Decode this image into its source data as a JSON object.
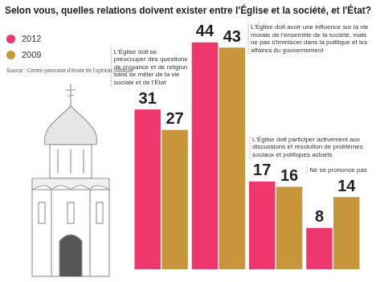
{
  "chart_data": {
    "type": "bar",
    "title": "Selon vous, quelles relations doivent exister entre l'Église et la société, et l'État?",
    "source": "Source : Centre panrusse d'étude de l'opinion publique",
    "categories": [
      "L'Église doit se préoccuper des questions de croyance et de religion sans se mêler de la vie sociale et de l'État",
      "L'Église doit avoir une influence sur la vie morale de l'ensemble de la société, mais ne pas s'immiscer dans la politique et les affaires du gouvernement",
      "L'Église doit participer activement aux discussions et résolution de problèmes sociaux et politiques actuels",
      "Ne se prononce pas"
    ],
    "series": [
      {
        "name": "2012",
        "color": "#f0376d",
        "values": [
          31,
          44,
          17,
          8
        ]
      },
      {
        "name": "2009",
        "color": "#c8953a",
        "values": [
          27,
          43,
          16,
          14
        ]
      }
    ],
    "ylim": [
      0,
      46
    ],
    "grid": false,
    "legend": "top-left",
    "data_labels": true,
    "tick_labels": false
  }
}
